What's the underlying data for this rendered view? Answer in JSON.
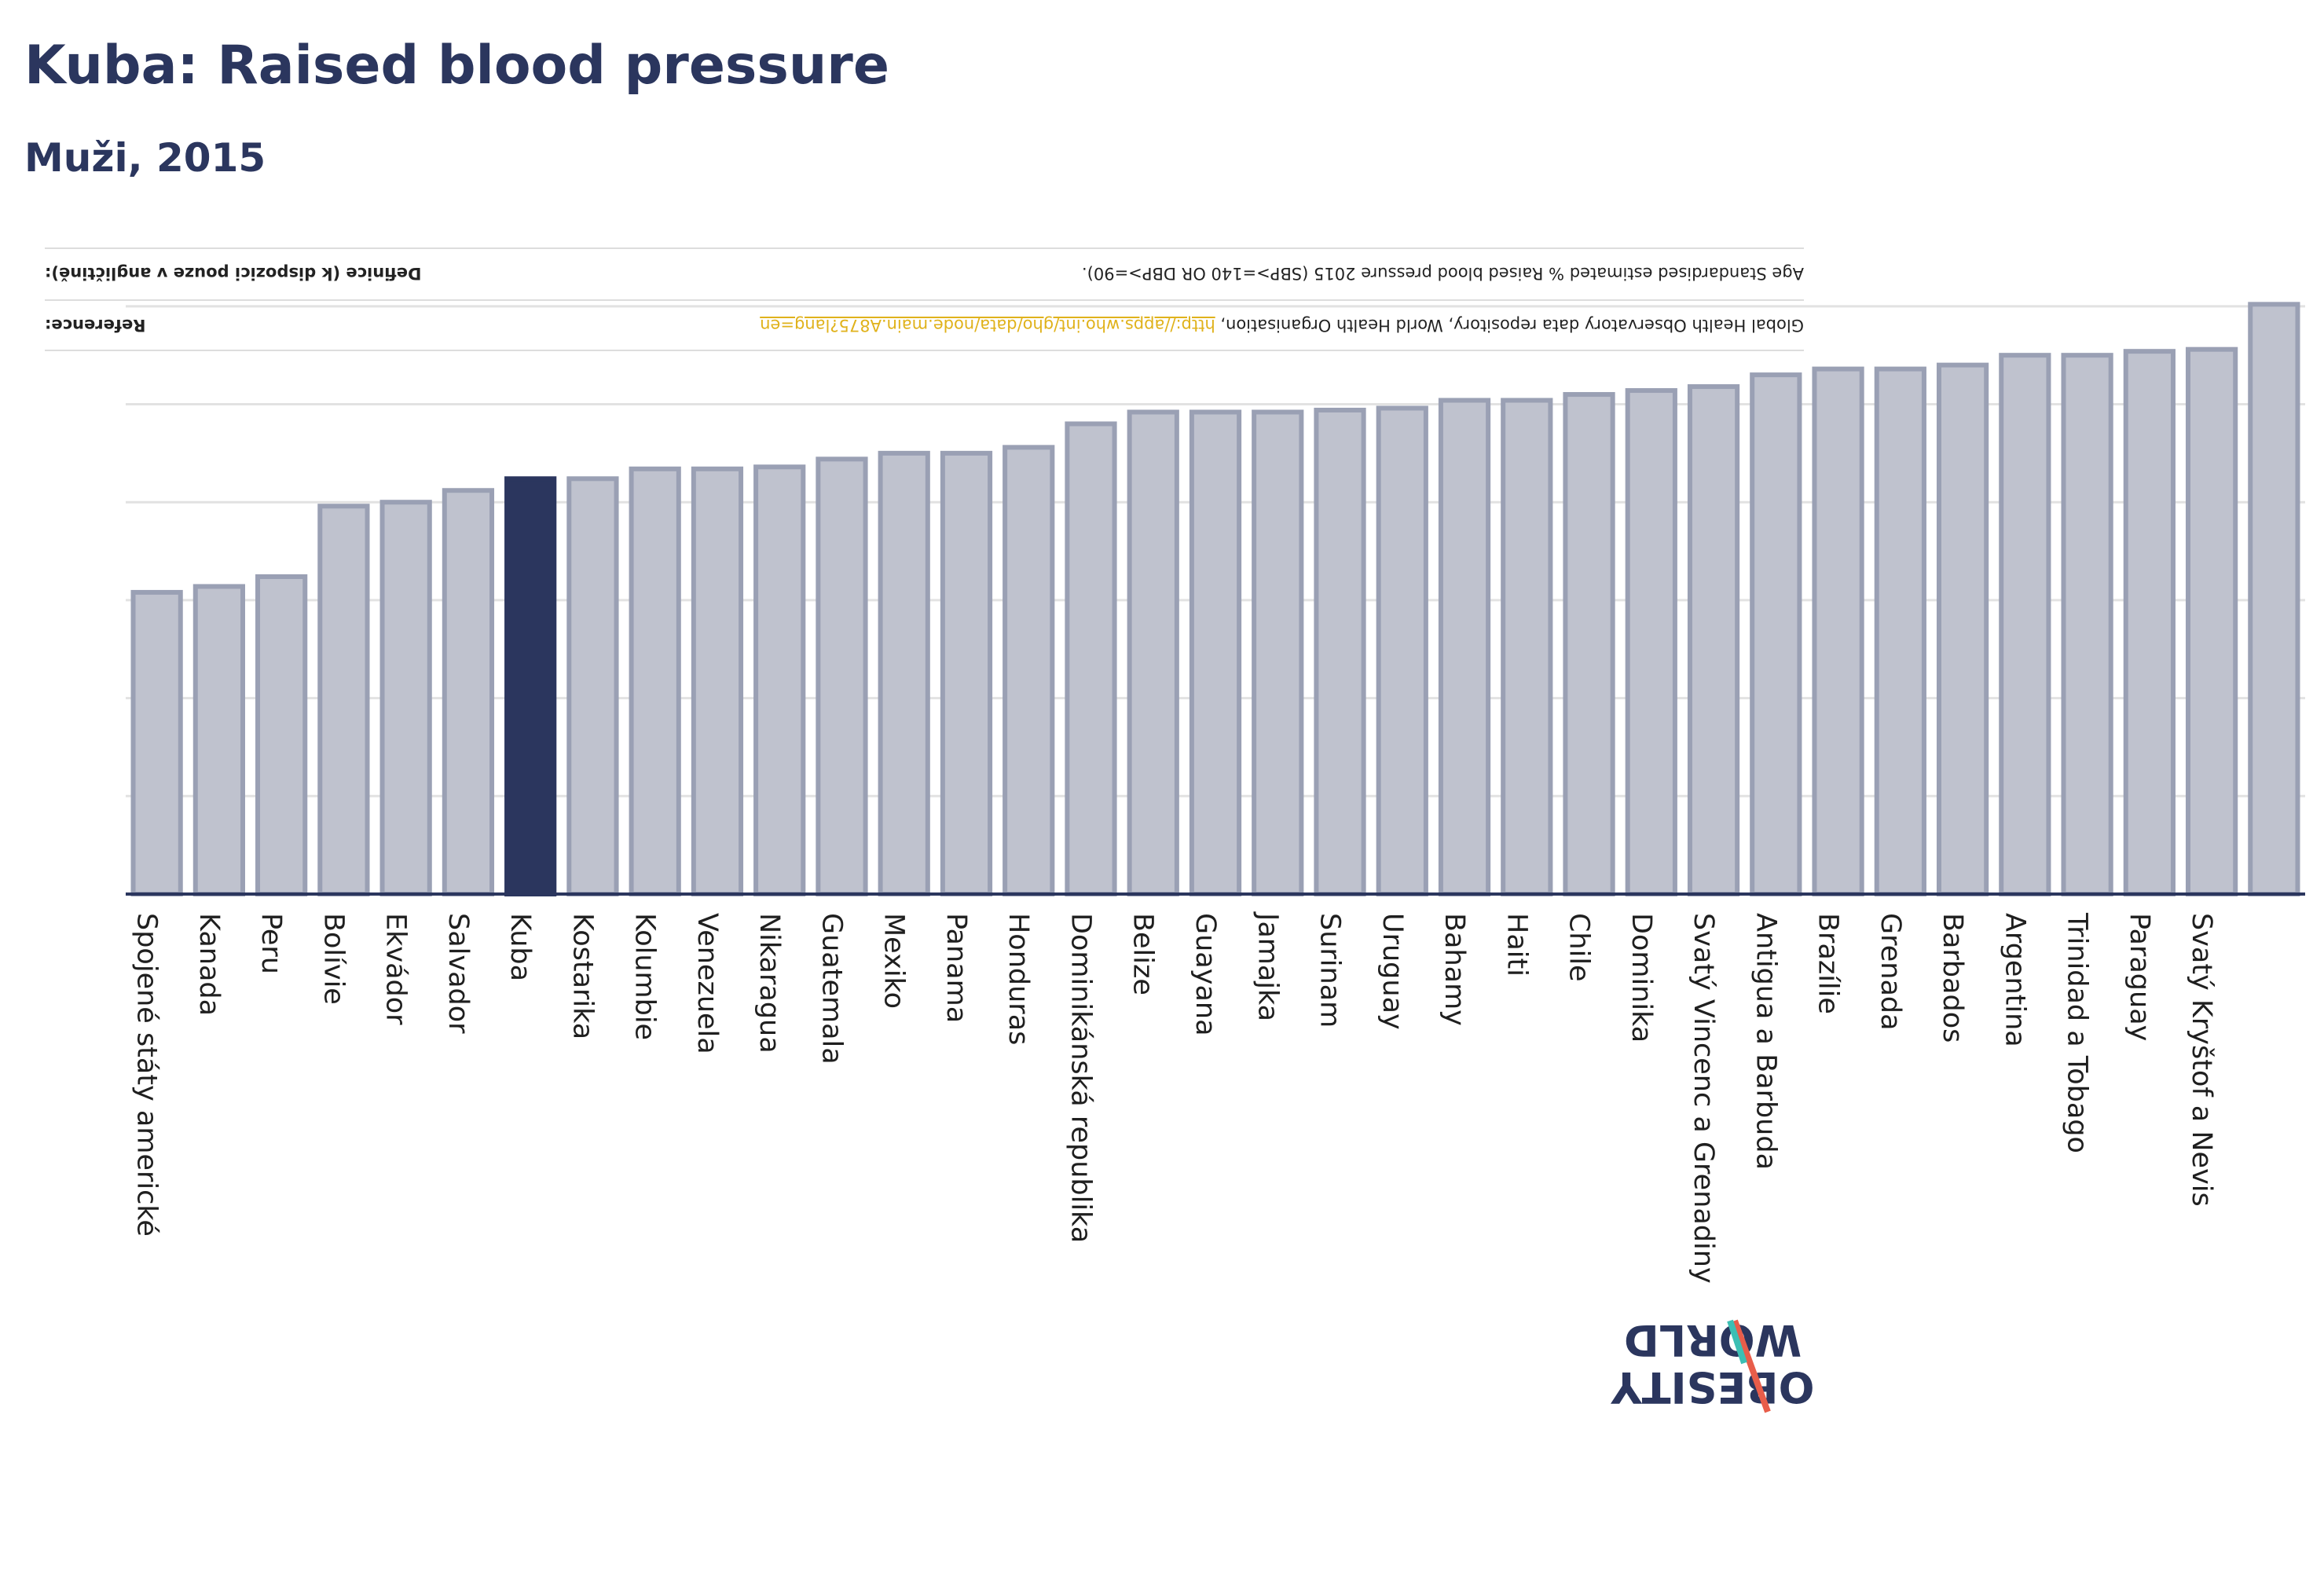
{
  "header": {
    "title": "Kuba: Raised blood pressure",
    "subtitle": "Muži, 2015"
  },
  "notes": {
    "definition_label": "Definice (k dispozici pouze v angličtině):",
    "definition_text": "Age Standardised estimated % Raised blood pressure 2015 (SBP>=140 OR DBP>=90).",
    "reference_label": "Reference:",
    "reference_text": "Global Health Observatory data repository, World Health Organisation,",
    "reference_link": "http://apps.who.int/gho/data/node.main.A875?lang=en"
  },
  "logo": {
    "line1": "OBESITY",
    "line2": "WORLD"
  },
  "colors": {
    "bar": "#bfc2ce",
    "bar_stroke": "#9aa0b4",
    "highlight": "#2b365e",
    "grid": "#e2e2e2",
    "axis": "#2b365e"
  },
  "chart_data": {
    "type": "bar",
    "title": "Kuba: Raised blood pressure",
    "subtitle": "Muži, 2015",
    "highlight": "Kuba",
    "ylim": [
      0,
      33
    ],
    "gridlines": [
      0,
      5,
      10,
      15,
      20,
      25,
      30
    ],
    "categories": [
      "Spojené státy americké",
      "Kanada",
      "Peru",
      "Bolívie",
      "Ekvádor",
      "Salvador",
      "Kuba",
      "Kostarika",
      "Kolumbie",
      "Venezuela",
      "Nikaragua",
      "Guatemala",
      "Mexiko",
      "Panama",
      "Honduras",
      "Dominikánská republika",
      "Belize",
      "Guayana",
      "Jamajka",
      "Surinam",
      "Uruguay",
      "Bahamy",
      "Haiti",
      "Chile",
      "Dominika",
      "Svatý Vincenc a Grenadiny",
      "Antigua a Barbuda",
      "Brazílie",
      "Grenada",
      "Barbados",
      "Argentina",
      "Trinidad a Tobago",
      "Paraguay",
      "Svatý Kryštof a Nevis",
      ""
    ],
    "values": [
      15.4,
      15.7,
      16.2,
      19.8,
      20.0,
      20.6,
      21.2,
      21.2,
      21.7,
      21.7,
      21.8,
      22.2,
      22.5,
      22.5,
      22.8,
      24.0,
      24.6,
      24.6,
      24.6,
      24.7,
      24.8,
      25.2,
      25.2,
      25.5,
      25.7,
      25.9,
      26.5,
      26.8,
      26.8,
      27.0,
      27.5,
      27.5,
      27.7,
      27.8,
      30.1
    ]
  }
}
